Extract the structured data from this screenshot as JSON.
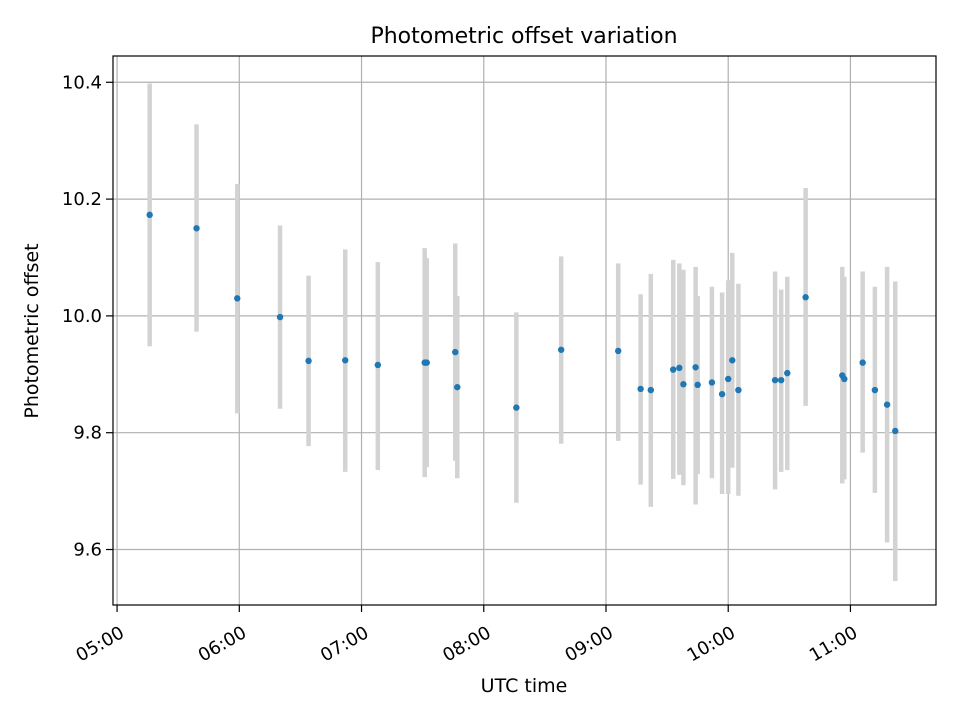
{
  "chart_data": {
    "type": "scatter",
    "title": "Photometric offset variation",
    "xlabel": "UTC time",
    "ylabel": "Photometric offset",
    "x_axis_kind": "time",
    "x_ticks": [
      "05:00",
      "06:00",
      "07:00",
      "08:00",
      "09:00",
      "10:00",
      "11:00"
    ],
    "xlim": [
      "04:58",
      "11:42"
    ],
    "y_ticks": [
      "9.6",
      "9.8",
      "10.0",
      "10.2",
      "10.4"
    ],
    "ylim": [
      9.505,
      10.445
    ],
    "grid": true,
    "error_bar_color": "#d3d3d3",
    "marker_color": "#1f77b4",
    "points": [
      {
        "x": "05:16",
        "y": 10.173,
        "ymin": 9.948,
        "ymax": 10.398
      },
      {
        "x": "05:39",
        "y": 10.15,
        "ymin": 9.973,
        "ymax": 10.328
      },
      {
        "x": "05:59",
        "y": 10.03,
        "ymin": 9.833,
        "ymax": 10.226
      },
      {
        "x": "06:20",
        "y": 9.998,
        "ymin": 9.841,
        "ymax": 10.155
      },
      {
        "x": "06:34",
        "y": 9.923,
        "ymin": 9.777,
        "ymax": 10.069
      },
      {
        "x": "06:52",
        "y": 9.924,
        "ymin": 9.733,
        "ymax": 10.114
      },
      {
        "x": "07:08",
        "y": 9.916,
        "ymin": 9.736,
        "ymax": 10.092
      },
      {
        "x": "07:31",
        "y": 9.92,
        "ymin": 9.724,
        "ymax": 10.116
      },
      {
        "x": "07:32",
        "y": 9.92,
        "ymin": 9.741,
        "ymax": 10.099
      },
      {
        "x": "07:46",
        "y": 9.938,
        "ymin": 9.752,
        "ymax": 10.124
      },
      {
        "x": "07:47",
        "y": 9.878,
        "ymin": 9.722,
        "ymax": 10.034
      },
      {
        "x": "08:16",
        "y": 9.843,
        "ymin": 9.68,
        "ymax": 10.006
      },
      {
        "x": "08:38",
        "y": 9.942,
        "ymin": 9.781,
        "ymax": 10.102
      },
      {
        "x": "09:06",
        "y": 9.94,
        "ymin": 9.786,
        "ymax": 10.09
      },
      {
        "x": "09:17",
        "y": 9.875,
        "ymin": 9.711,
        "ymax": 10.037
      },
      {
        "x": "09:22",
        "y": 9.873,
        "ymin": 9.673,
        "ymax": 10.072
      },
      {
        "x": "09:33",
        "y": 9.908,
        "ymin": 9.721,
        "ymax": 10.096
      },
      {
        "x": "09:36",
        "y": 9.911,
        "ymin": 9.728,
        "ymax": 10.09
      },
      {
        "x": "09:38",
        "y": 9.883,
        "ymin": 9.71,
        "ymax": 10.079
      },
      {
        "x": "09:44",
        "y": 9.912,
        "ymin": 9.677,
        "ymax": 10.084
      },
      {
        "x": "09:45",
        "y": 9.882,
        "ymin": 9.729,
        "ymax": 10.034
      },
      {
        "x": "09:52",
        "y": 9.886,
        "ymin": 9.722,
        "ymax": 10.05
      },
      {
        "x": "09:57",
        "y": 9.866,
        "ymin": 9.695,
        "ymax": 10.04
      },
      {
        "x": "10:00",
        "y": 9.892,
        "ymin": 9.695,
        "ymax": 10.061
      },
      {
        "x": "10:02",
        "y": 9.924,
        "ymin": 9.74,
        "ymax": 10.108
      },
      {
        "x": "10:05",
        "y": 9.873,
        "ymin": 9.692,
        "ymax": 10.055
      },
      {
        "x": "10:23",
        "y": 9.89,
        "ymin": 9.703,
        "ymax": 10.076
      },
      {
        "x": "10:26",
        "y": 9.89,
        "ymin": 9.733,
        "ymax": 10.045
      },
      {
        "x": "10:29",
        "y": 9.902,
        "ymin": 9.736,
        "ymax": 10.067
      },
      {
        "x": "10:38",
        "y": 10.032,
        "ymin": 9.846,
        "ymax": 10.219
      },
      {
        "x": "10:56",
        "y": 9.898,
        "ymin": 9.713,
        "ymax": 10.084
      },
      {
        "x": "10:57",
        "y": 9.892,
        "ymin": 9.72,
        "ymax": 10.067
      },
      {
        "x": "11:06",
        "y": 9.92,
        "ymin": 9.766,
        "ymax": 10.076
      },
      {
        "x": "11:12",
        "y": 9.873,
        "ymin": 9.697,
        "ymax": 10.05
      },
      {
        "x": "11:18",
        "y": 9.848,
        "ymin": 9.612,
        "ymax": 10.084
      },
      {
        "x": "11:22",
        "y": 9.803,
        "ymin": 9.546,
        "ymax": 10.059
      }
    ]
  }
}
